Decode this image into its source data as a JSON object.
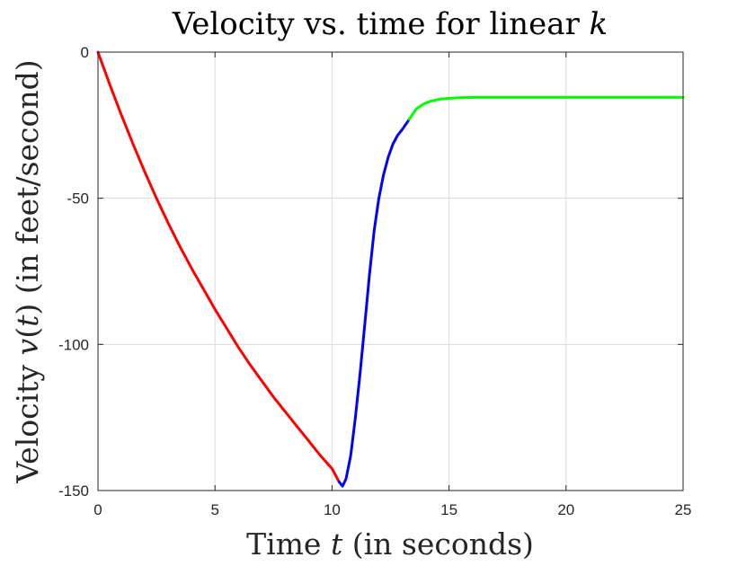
{
  "chart_data": {
    "type": "line",
    "title": {
      "before": "Velocity vs. time for linear ",
      "math": "k"
    },
    "xlabel": {
      "before": "Time ",
      "math": "t",
      "after": " (in seconds)"
    },
    "ylabel": {
      "before": "Velocity ",
      "math": "v",
      "after_math": "(",
      "math2": "t",
      "after": ") (in feet/second)"
    },
    "xlim": [
      0,
      25
    ],
    "ylim": [
      -150,
      0
    ],
    "xticks": [
      0,
      5,
      10,
      15,
      20,
      25
    ],
    "yticks": [
      0,
      -50,
      -100,
      -150
    ],
    "xtick_labels": [
      "0",
      "5",
      "10",
      "15",
      "20",
      "25"
    ],
    "ytick_labels": [
      "0",
      "-50",
      "-100",
      "-150"
    ],
    "grid": true,
    "series": [
      {
        "color": "#ff0000",
        "x": [
          0,
          0.5,
          1,
          1.5,
          2,
          2.5,
          3,
          3.5,
          4,
          4.5,
          5,
          5.5,
          6,
          6.5,
          7,
          7.5,
          8,
          8.5,
          9,
          9.5,
          10,
          10.3
        ],
        "y": [
          0,
          -11,
          -21.5,
          -31.5,
          -41,
          -50,
          -58.5,
          -66.5,
          -74,
          -81,
          -88,
          -94.5,
          -101,
          -107,
          -112.5,
          -118,
          -123,
          -128,
          -133,
          -138,
          -142.5,
          -147
        ]
      },
      {
        "color": "#0000ff",
        "x": [
          10.3,
          10.45,
          10.6,
          10.8,
          11,
          11.2,
          11.4,
          11.6,
          11.8,
          12,
          12.2,
          12.4,
          12.6,
          12.8,
          13,
          13.3
        ],
        "y": [
          -147,
          -148.5,
          -146,
          -138,
          -125,
          -110,
          -93,
          -76,
          -61,
          -50,
          -42,
          -36,
          -31.5,
          -28.5,
          -26.5,
          -23
        ]
      },
      {
        "color": "#00ff00",
        "x": [
          13.3,
          13.6,
          13.9,
          14.2,
          14.6,
          15,
          15.5,
          16,
          17,
          18,
          20,
          22.5,
          25
        ],
        "y": [
          -23,
          -19.5,
          -17.8,
          -16.8,
          -16.1,
          -15.8,
          -15.6,
          -15.5,
          -15.5,
          -15.5,
          -15.5,
          -15.5,
          -15.5
        ]
      }
    ]
  }
}
